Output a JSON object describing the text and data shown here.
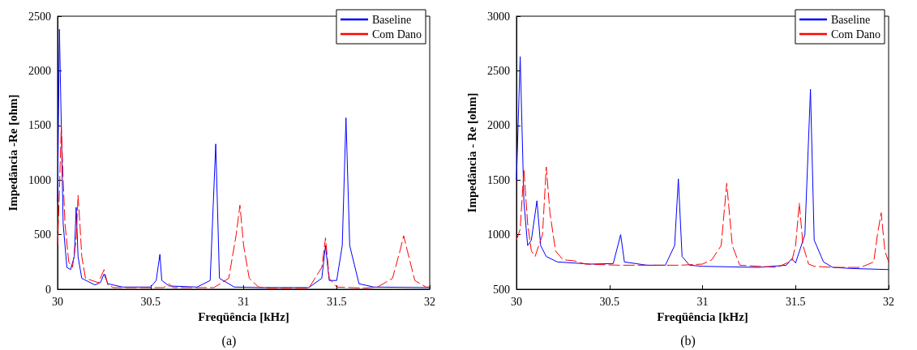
{
  "chart_data": [
    {
      "type": "line",
      "xlabel": "Freqüência [kHz]",
      "ylabel": "Impedância -Re [ohm]",
      "annotations": [
        "(a)"
      ],
      "xlim": [
        30,
        32
      ],
      "xticks": [
        30,
        30.5,
        31,
        31.5,
        32
      ],
      "ylim": [
        0,
        2500
      ],
      "yticks": [
        0,
        500,
        1000,
        1500,
        2000,
        2500
      ],
      "grid": false,
      "legend": "top right",
      "series": [
        {
          "name": "Baseline",
          "color": "#0000ff",
          "line_style": "solid",
          "x": [
            30.0,
            30.01,
            30.02,
            30.03,
            30.05,
            30.07,
            30.09,
            30.1,
            30.11,
            30.13,
            30.2,
            30.23,
            30.25,
            30.27,
            30.35,
            30.5,
            30.53,
            30.55,
            30.56,
            30.6,
            30.75,
            30.82,
            30.85,
            30.87,
            30.95,
            31.1,
            31.35,
            31.42,
            31.44,
            31.46,
            31.5,
            31.53,
            31.55,
            31.57,
            31.62,
            31.7,
            32.0
          ],
          "values": [
            800,
            2380,
            1500,
            600,
            200,
            180,
            300,
            750,
            300,
            100,
            40,
            60,
            140,
            50,
            20,
            20,
            80,
            320,
            80,
            30,
            20,
            80,
            1330,
            100,
            20,
            15,
            15,
            100,
            400,
            80,
            80,
            400,
            1570,
            400,
            50,
            20,
            15
          ]
        },
        {
          "name": "Com Dano",
          "color": "#ff0000",
          "line_style": "dashed",
          "x": [
            30.0,
            30.01,
            30.02,
            30.03,
            30.04,
            30.06,
            30.08,
            30.1,
            30.11,
            30.12,
            30.13,
            30.15,
            30.22,
            30.25,
            30.27,
            30.3,
            30.57,
            30.6,
            30.62,
            30.84,
            30.92,
            30.96,
            30.98,
            31.0,
            31.03,
            31.08,
            31.15,
            31.35,
            31.42,
            31.44,
            31.46,
            31.5,
            31.65,
            31.72,
            31.8,
            31.84,
            31.86,
            31.88,
            31.92,
            31.98,
            32.0
          ],
          "values": [
            400,
            900,
            1500,
            1000,
            600,
            250,
            200,
            450,
            860,
            600,
            300,
            100,
            60,
            180,
            40,
            15,
            15,
            50,
            15,
            15,
            100,
            500,
            770,
            400,
            100,
            20,
            10,
            10,
            200,
            470,
            100,
            20,
            10,
            20,
            100,
            350,
            490,
            350,
            80,
            20,
            20
          ]
        }
      ]
    },
    {
      "type": "line",
      "xlabel": "Freqüência [kHz]",
      "ylabel": "Impedância - Re [ohm]",
      "annotations": [
        "(b)"
      ],
      "xlim": [
        30,
        32
      ],
      "xticks": [
        30,
        30.5,
        31,
        31.5,
        32
      ],
      "ylim": [
        500,
        3000
      ],
      "yticks": [
        500,
        1000,
        1500,
        2000,
        2500,
        3000
      ],
      "grid": false,
      "legend": "top right",
      "series": [
        {
          "name": "Baseline",
          "color": "#0000ff",
          "line_style": "solid",
          "x": [
            30.0,
            30.02,
            30.04,
            30.06,
            30.08,
            30.11,
            30.13,
            30.16,
            30.22,
            30.4,
            30.52,
            30.56,
            30.58,
            30.7,
            30.8,
            30.85,
            30.87,
            30.89,
            30.93,
            31.0,
            31.3,
            31.45,
            31.48,
            31.5,
            31.55,
            31.58,
            31.6,
            31.65,
            31.7,
            31.8,
            32.0
          ],
          "values": [
            1500,
            2630,
            1300,
            900,
            950,
            1310,
            900,
            800,
            750,
            730,
            735,
            1000,
            750,
            720,
            720,
            900,
            1510,
            800,
            720,
            710,
            700,
            720,
            780,
            740,
            1000,
            2330,
            950,
            750,
            700,
            690,
            680
          ]
        },
        {
          "name": "Com Dano",
          "color": "#ff0000",
          "line_style": "dashed",
          "x": [
            30.0,
            30.02,
            30.04,
            30.06,
            30.08,
            30.1,
            30.14,
            30.16,
            30.18,
            30.21,
            30.25,
            30.31,
            30.37,
            30.55,
            30.62,
            30.8,
            30.88,
            31.0,
            31.05,
            31.1,
            31.13,
            31.16,
            31.2,
            31.4,
            31.48,
            31.5,
            31.52,
            31.54,
            31.57,
            31.6,
            31.7,
            31.85,
            31.92,
            31.94,
            31.96,
            31.98,
            32.0
          ],
          "values": [
            950,
            1050,
            1600,
            1100,
            850,
            800,
            1000,
            1620,
            1200,
            850,
            770,
            760,
            730,
            720,
            720,
            720,
            720,
            730,
            770,
            900,
            1470,
            900,
            720,
            700,
            760,
            900,
            1290,
            900,
            730,
            710,
            700,
            700,
            750,
            1000,
            1200,
            850,
            750
          ]
        }
      ]
    }
  ]
}
